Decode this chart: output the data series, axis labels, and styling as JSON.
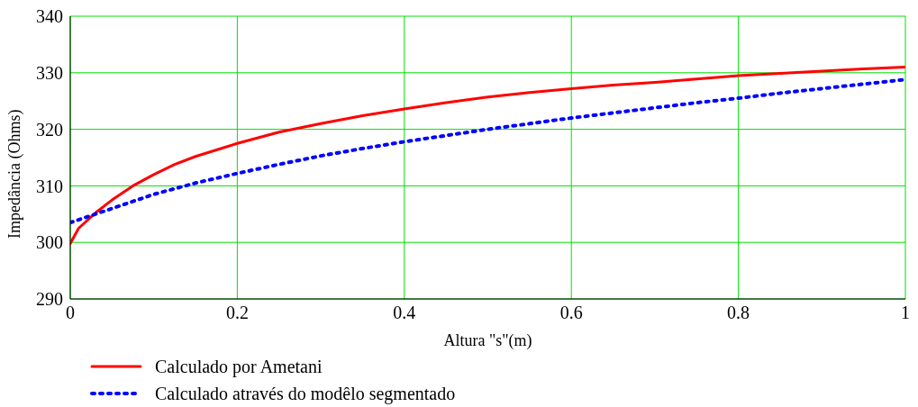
{
  "chart_data": {
    "type": "line",
    "xlabel": "Altura \"s\"(m)",
    "ylabel": "Impedância (Ohms)",
    "xlim": [
      0,
      1
    ],
    "xticks": [
      0,
      0.2,
      0.4,
      0.6,
      0.8,
      1
    ],
    "ylim": [
      290,
      340
    ],
    "yticks": [
      290,
      300,
      310,
      320,
      330,
      340
    ],
    "grid": true,
    "legend": "bottom left",
    "series": [
      {
        "name": "Calculado por Ametani",
        "color": "#ff0000",
        "line_style": "solid",
        "x": [
          0,
          0.01,
          0.03,
          0.05,
          0.075,
          0.1,
          0.125,
          0.15,
          0.2,
          0.25,
          0.3,
          0.35,
          0.4,
          0.45,
          0.5,
          0.55,
          0.6,
          0.65,
          0.7,
          0.75,
          0.8,
          0.85,
          0.9,
          0.95,
          1
        ],
        "values": [
          299.8,
          302.5,
          305.2,
          307.5,
          310,
          312,
          313.8,
          315.2,
          317.5,
          319.5,
          321,
          322.4,
          323.6,
          324.7,
          325.7,
          326.5,
          327.2,
          327.8,
          328.3,
          328.9,
          329.5,
          329.9,
          330.3,
          330.7,
          331
        ]
      },
      {
        "name": "Calculado através do modêlo segmentado",
        "color": "#0000ff",
        "line_style": "dotted",
        "x": [
          0,
          0.05,
          0.1,
          0.15,
          0.2,
          0.25,
          0.3,
          0.35,
          0.4,
          0.45,
          0.5,
          0.55,
          0.6,
          0.65,
          0.7,
          0.75,
          0.8,
          0.85,
          0.9,
          0.95,
          1
        ],
        "values": [
          303.5,
          306,
          308.5,
          310.5,
          312.2,
          313.8,
          315.3,
          316.6,
          317.8,
          318.9,
          320,
          321,
          322,
          322.9,
          323.8,
          324.7,
          325.5,
          326.4,
          327.2,
          328,
          328.8
        ]
      }
    ]
  }
}
